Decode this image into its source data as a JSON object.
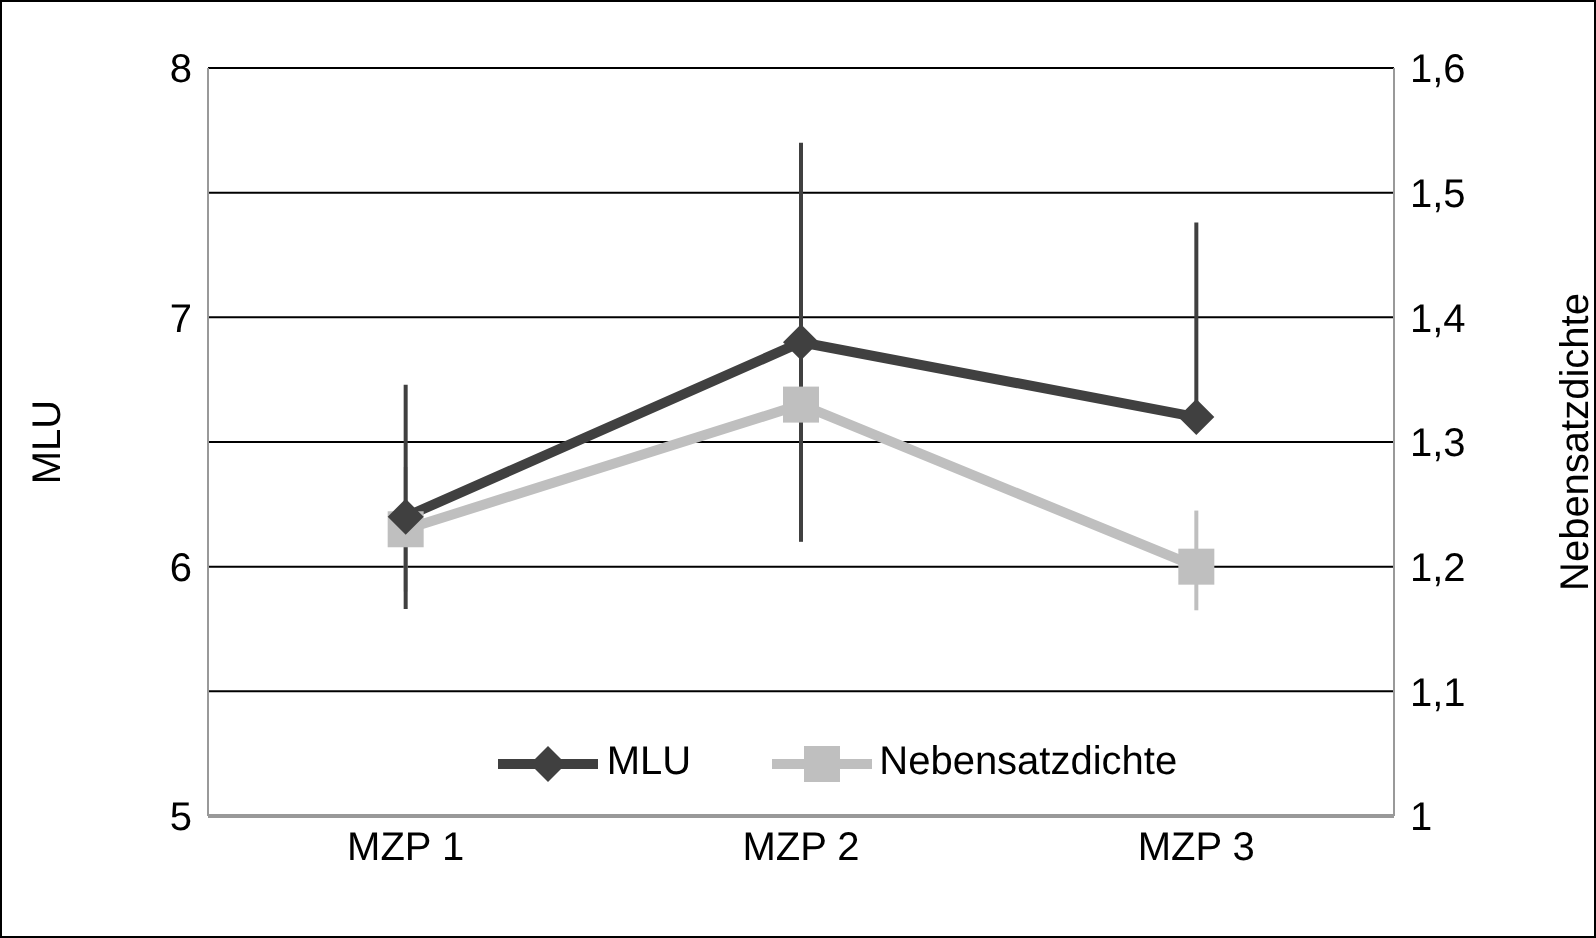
{
  "chart_data": {
    "type": "line",
    "categories": [
      "MZP 1",
      "MZP 2",
      "MZP 3"
    ],
    "series": [
      {
        "name": "MLU",
        "color": "#404040",
        "values": [
          6.2,
          6.9,
          6.6
        ],
        "errors": [
          [
            5.83,
            6.73
          ],
          [
            6.1,
            7.7
          ],
          [
            6.6,
            7.38
          ]
        ],
        "marker": "diamond"
      },
      {
        "name": "Nebensatzdichte",
        "color": "#bfbfbf",
        "values": [
          1.23,
          1.33,
          1.2
        ],
        "errors": [
          [
            1.18,
            1.28
          ],
          [
            1.22,
            1.44
          ],
          [
            1.165,
            1.245
          ]
        ],
        "marker": "square",
        "axis": "y2"
      }
    ],
    "ylabel": "MLU",
    "y2label": "Nebensatzdichte",
    "ylim": [
      5,
      8
    ],
    "yticks": [
      5,
      6,
      7,
      8
    ],
    "y2lim": [
      1,
      1.6
    ],
    "y2ticks": [
      1,
      {
        "value": 1.1,
        "label": "1,1"
      },
      {
        "value": 1.2,
        "label": "1,2"
      },
      {
        "value": 1.3,
        "label": "1,3"
      },
      {
        "value": 1.4,
        "label": "1,4"
      },
      {
        "value": 1.5,
        "label": "1,5"
      },
      {
        "value": 1.6,
        "label": "1,6"
      }
    ],
    "grid": true,
    "legend": "bottom"
  }
}
